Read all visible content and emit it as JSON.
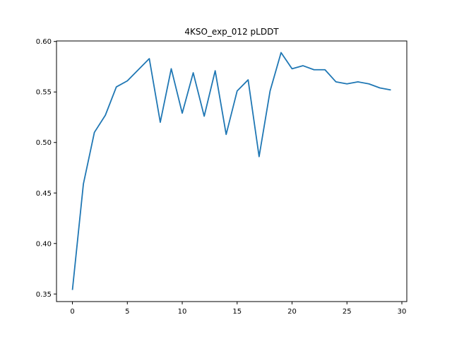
{
  "chart_data": {
    "type": "line",
    "title": "4KSO_exp_012 pLDDT",
    "xlabel": "",
    "ylabel": "",
    "xlim": [
      -1.45,
      30.45
    ],
    "ylim": [
      0.3425,
      0.6005
    ],
    "xticks": [
      0,
      5,
      10,
      15,
      20,
      25,
      30
    ],
    "yticks": [
      0.35,
      0.4,
      0.45,
      0.5,
      0.55,
      0.6
    ],
    "ytick_labels": [
      "0.35",
      "0.40",
      "0.45",
      "0.50",
      "0.55",
      "0.60"
    ],
    "grid": false,
    "series": [
      {
        "color": "#1f77b4",
        "x": [
          0,
          1,
          2,
          3,
          4,
          5,
          6,
          7,
          8,
          9,
          10,
          11,
          12,
          13,
          14,
          15,
          16,
          17,
          18,
          19,
          20,
          21,
          22,
          23,
          24,
          25,
          26,
          27,
          28,
          29
        ],
        "y": [
          0.354,
          0.459,
          0.51,
          0.527,
          0.555,
          0.561,
          0.572,
          0.583,
          0.52,
          0.573,
          0.529,
          0.569,
          0.526,
          0.571,
          0.508,
          0.551,
          0.562,
          0.486,
          0.551,
          0.589,
          0.573,
          0.576,
          0.572,
          0.572,
          0.56,
          0.558,
          0.56,
          0.558,
          0.554,
          0.552
        ]
      }
    ]
  }
}
